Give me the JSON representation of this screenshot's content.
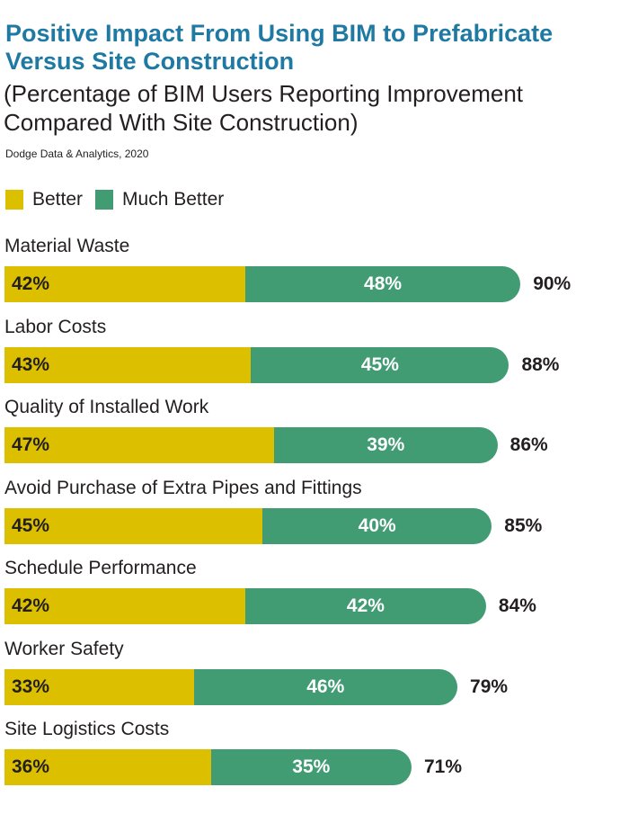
{
  "header": {
    "title": "Positive Impact From Using BIM to Prefabricate Versus Site Construction",
    "subtitle": "(Percentage of BIM Users Reporting Improvement Compared With Site Construction)",
    "source": "Dodge Data & Analytics, 2020"
  },
  "legend": [
    {
      "label": "Better",
      "color": "#dcc000"
    },
    {
      "label": "Much Better",
      "color": "#419b73"
    }
  ],
  "chart_data": {
    "type": "bar",
    "orientation": "horizontal",
    "stacked": true,
    "title": "Positive Impact From Using BIM to Prefabricate Versus Site Construction",
    "subtitle": "(Percentage of BIM Users Reporting Improvement Compared With Site Construction)",
    "categories": [
      "Material Waste",
      "Labor Costs",
      "Quality of Installed Work",
      "Avoid Purchase of Extra Pipes and Fittings",
      "Schedule Performance",
      "Worker Safety",
      "Site Logistics Costs"
    ],
    "series": [
      {
        "name": "Better",
        "color": "#dcc000",
        "values": [
          42,
          43,
          47,
          45,
          42,
          33,
          36
        ]
      },
      {
        "name": "Much Better",
        "color": "#419b73",
        "values": [
          48,
          45,
          39,
          40,
          42,
          46,
          35
        ]
      }
    ],
    "totals": [
      90,
      88,
      86,
      85,
      84,
      79,
      71
    ],
    "legend_position": "top-left",
    "grid": false
  }
}
